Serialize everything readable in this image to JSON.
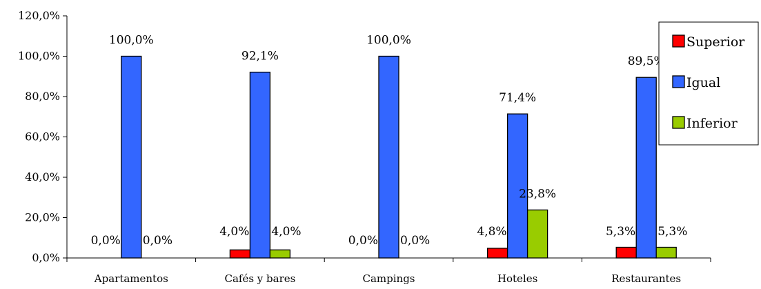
{
  "chart_data": {
    "type": "bar",
    "categories": [
      "Apartamentos",
      "Cafés y bares",
      "Campings",
      "Hoteles",
      "Restaurantes"
    ],
    "series": [
      {
        "name": "Superior",
        "color": "#ff0000",
        "values": [
          0.0,
          4.0,
          0.0,
          4.8,
          5.3
        ],
        "labels": [
          "0,0%",
          "4,0%",
          "0,0%",
          "4,8%",
          "5,3%"
        ]
      },
      {
        "name": "Igual",
        "color": "#3366ff",
        "values": [
          100.0,
          92.1,
          100.0,
          71.4,
          89.5
        ],
        "labels": [
          "100,0%",
          "92,1%",
          "100,0%",
          "71,4%",
          "89,5%"
        ]
      },
      {
        "name": "Inferior",
        "color": "#99cc00",
        "values": [
          0.0,
          4.0,
          0.0,
          23.8,
          5.3
        ],
        "labels": [
          "0,0%",
          "4,0%",
          "0,0%",
          "23,8%",
          "5,3%"
        ]
      }
    ],
    "ylim": [
      0,
      120
    ],
    "yticks": [
      0,
      20,
      40,
      60,
      80,
      100,
      120
    ],
    "ytick_labels": [
      "0,0%",
      "20,0%",
      "40,0%",
      "60,0%",
      "80,0%",
      "100,0%",
      "120,0%"
    ],
    "grid": false,
    "legend": "right",
    "title": "",
    "xlabel": "",
    "ylabel": ""
  }
}
